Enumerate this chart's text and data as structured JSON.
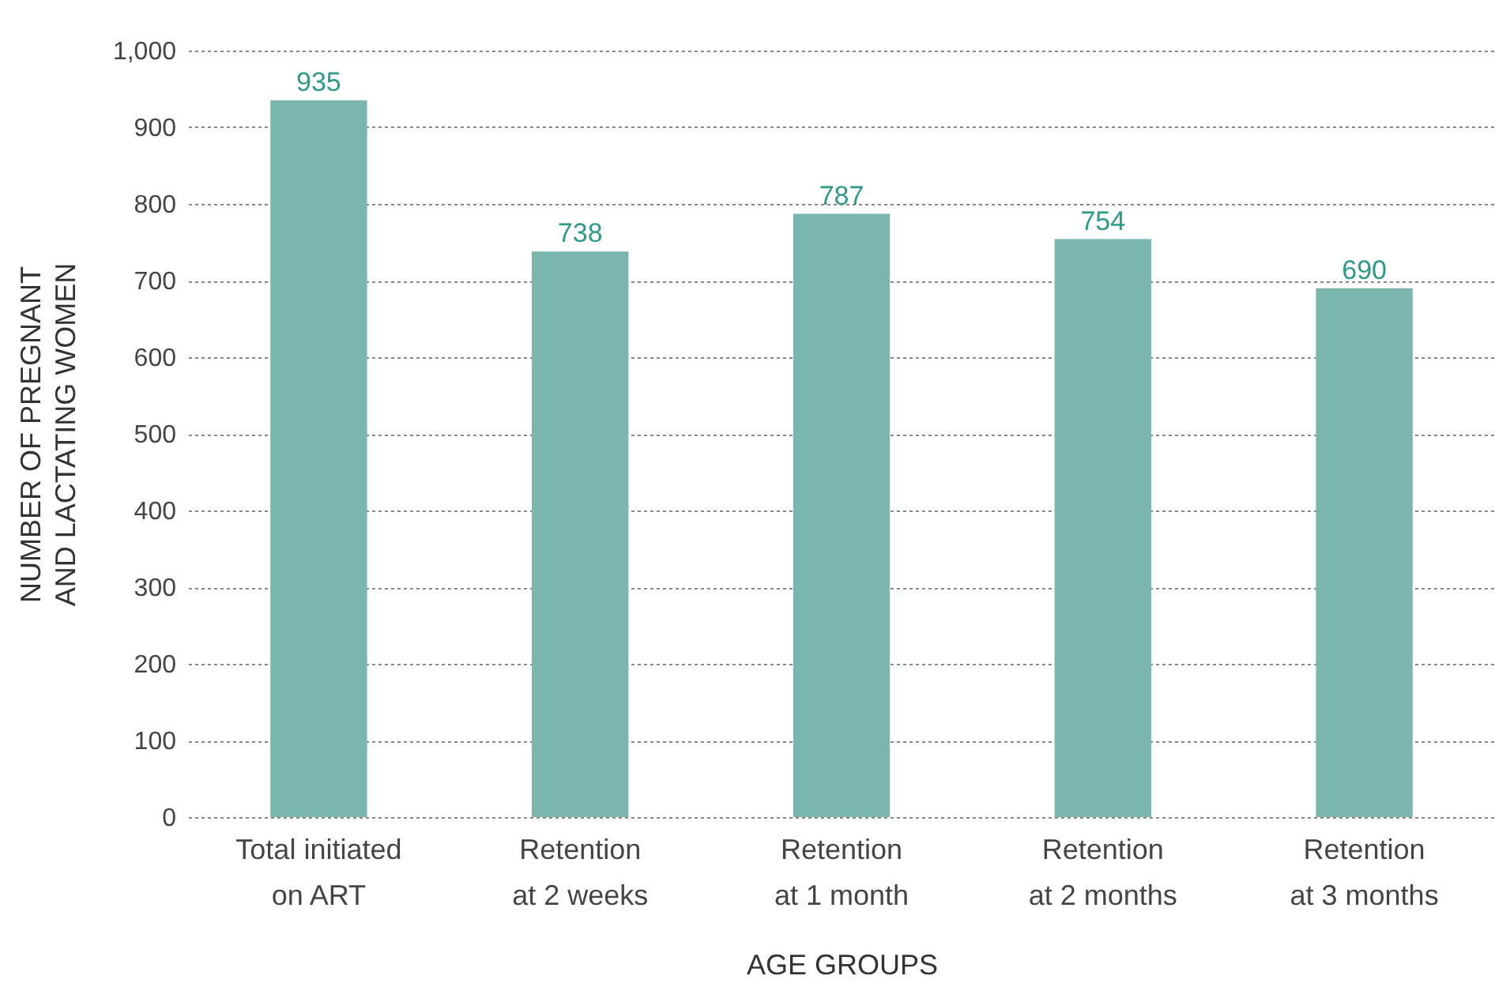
{
  "chart_data": {
    "type": "bar",
    "categories": [
      "Total initiated on ART",
      "Retention at 2 weeks",
      "Retention at 1 month",
      "Retention at 2 months",
      "Retention at 3 months"
    ],
    "values": [
      935,
      738,
      787,
      754,
      690
    ],
    "color": "#7ab6ad",
    "xlabel": "AGE GROUPS",
    "ylabel": "NUMBER OF PREGNANT AND LACTATING WOMEN",
    "ylim": [
      0,
      1000
    ],
    "yticks": [
      0,
      100,
      200,
      300,
      400,
      500,
      600,
      700,
      800,
      900,
      {
        "value": 1000,
        "label": "1,000"
      }
    ],
    "grid": "y",
    "data_labels": true
  }
}
